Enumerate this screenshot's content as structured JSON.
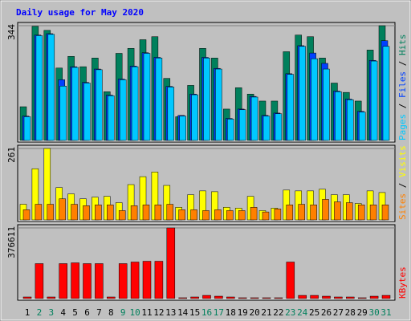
{
  "chart_data": [
    {
      "type": "bar",
      "title": "Daily usage for May 2020",
      "ylim": [
        0,
        344
      ],
      "yticks": [
        344
      ],
      "series": [
        {
          "name": "Hits",
          "color": "#00805c",
          "values": [
            101,
            342,
            330,
            217,
            252,
            221,
            247,
            146,
            261,
            276,
            302,
            311,
            186,
            71,
            165,
            276,
            247,
            94,
            158,
            139,
            118,
            118,
            266,
            316,
            311,
            247,
            172,
            144,
            118,
            271,
            344
          ]
        },
        {
          "name": "Files",
          "color": "#0040ff",
          "values": [
            73,
            316,
            320,
            182,
            221,
            174,
            214,
            136,
            184,
            223,
            263,
            249,
            162,
            75,
            139,
            249,
            216,
            66,
            94,
            132,
            75,
            82,
            200,
            284,
            262,
            231,
            148,
            124,
            87,
            240,
            299
          ]
        },
        {
          "name": "Pages",
          "color": "#00c8ff",
          "values": [
            71,
            314,
            318,
            163,
            219,
            172,
            212,
            134,
            182,
            221,
            261,
            247,
            160,
            73,
            137,
            247,
            214,
            64,
            92,
            130,
            73,
            80,
            198,
            282,
            245,
            214,
            146,
            122,
            85,
            238,
            282
          ]
        }
      ]
    },
    {
      "type": "bar",
      "ylim": [
        0,
        261
      ],
      "yticks": [
        261
      ],
      "series": [
        {
          "name": "Visits",
          "color": "#ffff00",
          "values": [
            57,
            187,
            261,
            118,
            95,
            77,
            83,
            86,
            63,
            129,
            158,
            175,
            126,
            46,
            92,
            106,
            103,
            46,
            43,
            86,
            34,
            43,
            109,
            106,
            106,
            112,
            92,
            92,
            60,
            106,
            100
          ]
        },
        {
          "name": "Sites",
          "color": "#ff8000",
          "values": [
            37,
            57,
            57,
            77,
            57,
            52,
            55,
            55,
            34,
            52,
            55,
            55,
            57,
            37,
            37,
            34,
            37,
            34,
            34,
            46,
            29,
            40,
            55,
            57,
            55,
            75,
            66,
            63,
            55,
            55,
            55
          ]
        }
      ]
    },
    {
      "type": "bar",
      "ylim": [
        0,
        376611
      ],
      "yticks": [
        376611
      ],
      "categories": [
        "1",
        "2",
        "3",
        "4",
        "5",
        "6",
        "7",
        "8",
        "9",
        "10",
        "11",
        "12",
        "13",
        "14",
        "15",
        "16",
        "17",
        "18",
        "19",
        "20",
        "21",
        "22",
        "23",
        "24",
        "25",
        "26",
        "27",
        "28",
        "29",
        "30",
        "31"
      ],
      "category_colors": [
        "#000000",
        "#00805c",
        "#00805c",
        "#000000",
        "#000000",
        "#000000",
        "#000000",
        "#000000",
        "#00805c",
        "#00805c",
        "#000000",
        "#000000",
        "#000000",
        "#000000",
        "#000000",
        "#00805c",
        "#00805c",
        "#000000",
        "#000000",
        "#000000",
        "#000000",
        "#000000",
        "#00805c",
        "#00805c",
        "#000000",
        "#000000",
        "#000000",
        "#000000",
        "#000000",
        "#00805c",
        "#00805c"
      ],
      "series": [
        {
          "name": "KBytes",
          "color": "#ff0000",
          "values": [
            8500,
            186200,
            8500,
            186200,
            190400,
            186200,
            186200,
            8500,
            186200,
            194700,
            198900,
            198900,
            376611,
            4200,
            8500,
            16900,
            12700,
            8500,
            4200,
            4200,
            4200,
            4200,
            194700,
            16900,
            16900,
            12700,
            8500,
            8500,
            4200,
            12700,
            16900
          ]
        }
      ]
    }
  ]
}
